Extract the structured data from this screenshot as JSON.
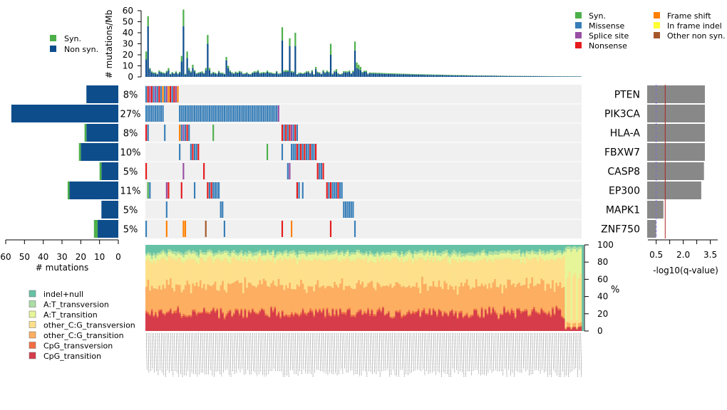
{
  "colors": {
    "syn": "#4daf4a",
    "missense": "#377eb8",
    "splice": "#984ea3",
    "nonsense": "#e41a1c",
    "frameshift": "#ff7f00",
    "inframe": "#ffff33",
    "othernonsyn": "#a65628",
    "nonsyn": "#0e4d8c",
    "grid_bg": "#f0f0f0",
    "qbar": "#888888",
    "qline": "#b22222",
    "qdash": "#7b68ee",
    "spectrum": [
      "#d63c4a",
      "#f46d43",
      "#fdae61",
      "#fee08b",
      "#e6f598",
      "#abdda4",
      "#66c2a5"
    ]
  },
  "chart_data": [
    {
      "id": "tmb",
      "type": "bar",
      "ylabel": "# mutations/Mb",
      "ylim": [
        0,
        60
      ],
      "yticks": [
        0,
        10,
        20,
        30,
        40,
        50,
        60
      ],
      "n_samples": 234,
      "peaks": [
        {
          "i": 0,
          "non": 16,
          "syn": 7
        },
        {
          "i": 1,
          "non": 46,
          "syn": 9
        },
        {
          "i": 2,
          "non": 7,
          "syn": 1
        },
        {
          "i": 3,
          "non": 4,
          "syn": 1
        },
        {
          "i": 5,
          "non": 3,
          "syn": 1
        },
        {
          "i": 12,
          "non": 6,
          "syn": 2
        },
        {
          "i": 19,
          "non": 14,
          "syn": 5
        },
        {
          "i": 20,
          "non": 46,
          "syn": 15
        },
        {
          "i": 22,
          "non": 17,
          "syn": 6
        },
        {
          "i": 23,
          "non": 6,
          "syn": 2
        },
        {
          "i": 24,
          "non": 4,
          "syn": 1
        },
        {
          "i": 25,
          "non": 8,
          "syn": 3
        },
        {
          "i": 32,
          "non": 6,
          "syn": 2
        },
        {
          "i": 33,
          "non": 30,
          "syn": 8
        },
        {
          "i": 34,
          "non": 6,
          "syn": 2
        },
        {
          "i": 43,
          "non": 15,
          "syn": 3
        },
        {
          "i": 44,
          "non": 8,
          "syn": 2
        },
        {
          "i": 73,
          "non": 33,
          "syn": 12
        },
        {
          "i": 77,
          "non": 28,
          "syn": 7
        },
        {
          "i": 80,
          "non": 28,
          "syn": 12
        },
        {
          "i": 91,
          "non": 7,
          "syn": 2
        },
        {
          "i": 99,
          "non": 20,
          "syn": 10
        },
        {
          "i": 102,
          "non": 5,
          "syn": 2
        },
        {
          "i": 112,
          "non": 24,
          "syn": 8
        },
        {
          "i": 113,
          "non": 8,
          "syn": 5
        },
        {
          "i": 114,
          "non": 7,
          "syn": 4
        },
        {
          "i": 115,
          "non": 6,
          "syn": 3
        }
      ],
      "legend": [
        "Syn.",
        "Non syn."
      ]
    },
    {
      "id": "oncoplot",
      "type": "heatmap",
      "genes": [
        "PTEN",
        "PIK3CA",
        "HLA-A",
        "FBXW7",
        "CASP8",
        "EP300",
        "MAPK1",
        "ZNF750"
      ],
      "percent": [
        "8%",
        "27%",
        "8%",
        "10%",
        "5%",
        "11%",
        "5%",
        "5%"
      ],
      "left_bars": [
        {
          "syn": 0,
          "non": 17
        },
        {
          "syn": 0,
          "non": 57
        },
        {
          "syn": 1,
          "non": 17
        },
        {
          "syn": 1,
          "non": 20
        },
        {
          "syn": 1,
          "non": 9
        },
        {
          "syn": 1,
          "non": 26
        },
        {
          "syn": 0,
          "non": 9
        },
        {
          "syn": 2,
          "non": 11
        }
      ],
      "left_axis": {
        "label": "# mutations",
        "ticks": [
          60,
          50,
          40,
          30,
          20,
          10,
          0
        ],
        "max": 60
      },
      "cells": [
        [
          [
            0,
            "ms"
          ],
          [
            1,
            "nn"
          ],
          [
            2,
            "sp"
          ],
          [
            3,
            "nn"
          ],
          [
            4,
            "ms"
          ],
          [
            5,
            "sp"
          ],
          [
            6,
            "ms"
          ],
          [
            7,
            "nn"
          ],
          [
            8,
            "ms"
          ],
          [
            9,
            "fs"
          ],
          [
            10,
            "ms"
          ],
          [
            11,
            "sp"
          ],
          [
            12,
            "fs"
          ],
          [
            13,
            "nn"
          ],
          [
            14,
            "ms"
          ],
          [
            15,
            "nn"
          ],
          [
            16,
            "sp"
          ],
          [
            17,
            "fs"
          ]
        ],
        [
          [
            "r",
            0,
            9,
            "ms"
          ],
          [
            "r",
            18,
            70,
            "ms"
          ],
          [
            71,
            "sp"
          ]
        ],
        [
          [
            0,
            "nn"
          ],
          [
            1,
            "ms"
          ],
          [
            10,
            "ms"
          ],
          [
            18,
            "fs"
          ],
          [
            19,
            "ms"
          ],
          [
            20,
            "sp"
          ],
          [
            21,
            "ms"
          ],
          [
            22,
            "nn"
          ],
          [
            23,
            "ms"
          ],
          [
            36,
            "sy"
          ],
          [
            73,
            "nn"
          ],
          [
            74,
            "ms"
          ],
          [
            75,
            "nn"
          ],
          [
            76,
            "ms"
          ],
          [
            77,
            "nn"
          ],
          [
            78,
            "sp"
          ],
          [
            79,
            "ms"
          ],
          [
            80,
            "nn"
          ],
          [
            81,
            "ms"
          ]
        ],
        [
          [
            18,
            "ms"
          ],
          [
            24,
            "ms"
          ],
          [
            25,
            "nn"
          ],
          [
            26,
            "ms"
          ],
          [
            27,
            "ms"
          ],
          [
            28,
            "nn"
          ],
          [
            65,
            "sy"
          ],
          [
            73,
            "ms"
          ],
          [
            78,
            "ms"
          ],
          [
            79,
            "ms"
          ],
          [
            80,
            "ms"
          ],
          [
            81,
            "nn"
          ],
          [
            82,
            "ms"
          ],
          [
            83,
            "nn"
          ],
          [
            84,
            "ms"
          ],
          [
            85,
            "nn"
          ],
          [
            86,
            "ms"
          ],
          [
            87,
            "ms"
          ],
          [
            88,
            "nn"
          ],
          [
            89,
            "ms"
          ],
          [
            90,
            "ms"
          ],
          [
            91,
            "nn"
          ]
        ],
        [
          [
            0,
            "nn"
          ],
          [
            20,
            "sp"
          ],
          [
            31,
            "nn"
          ],
          [
            76,
            "ms"
          ],
          [
            77,
            "sp"
          ],
          [
            92,
            "nn"
          ],
          [
            93,
            "ms"
          ],
          [
            94,
            "ms"
          ],
          [
            95,
            "nn"
          ]
        ],
        [
          [
            1,
            "sy"
          ],
          [
            2,
            "ms"
          ],
          [
            11,
            "sp"
          ],
          [
            12,
            "nn"
          ],
          [
            19,
            "nn"
          ],
          [
            26,
            "ms"
          ],
          [
            33,
            "nn"
          ],
          [
            34,
            "ms"
          ],
          [
            35,
            "nn"
          ],
          [
            36,
            "ms"
          ],
          [
            37,
            "ms"
          ],
          [
            38,
            "ms"
          ],
          [
            39,
            "ms"
          ],
          [
            81,
            "nn"
          ],
          [
            82,
            "ms"
          ],
          [
            84,
            "ms"
          ],
          [
            97,
            "nn"
          ],
          [
            98,
            "ms"
          ],
          [
            99,
            "nn"
          ],
          [
            100,
            "ms"
          ],
          [
            101,
            "ms"
          ],
          [
            102,
            "ms"
          ],
          [
            103,
            "nn"
          ],
          [
            104,
            "ms"
          ],
          [
            105,
            "ms"
          ]
        ],
        [
          [
            11,
            "ms"
          ],
          [
            40,
            "ms"
          ],
          [
            41,
            "ms"
          ],
          [
            106,
            "ms"
          ],
          [
            107,
            "ms"
          ],
          [
            108,
            "ms"
          ],
          [
            109,
            "ms"
          ],
          [
            110,
            "ms"
          ],
          [
            111,
            "ms"
          ]
        ],
        [
          [
            0,
            "ms"
          ],
          [
            11,
            "fs"
          ],
          [
            20,
            "fs"
          ],
          [
            21,
            "fs"
          ],
          [
            32,
            "ot"
          ],
          [
            42,
            "ms"
          ],
          [
            73,
            "nn"
          ],
          [
            78,
            "fs"
          ],
          [
            99,
            "nn"
          ],
          [
            112,
            "ms"
          ]
        ]
      ]
    },
    {
      "id": "qvalues",
      "type": "bar",
      "xlabel": "-log10(q-value)",
      "xticks": [
        0.5,
        2.0,
        3.5
      ],
      "xtick_labels": [
        "0.5",
        "2.0",
        "3.5"
      ],
      "xlim": [
        0,
        3.9
      ],
      "values": [
        3.2,
        3.2,
        3.2,
        3.2,
        3.15,
        3.0,
        0.9,
        0.5
      ],
      "threshold": 1.0,
      "dashed": 0.5
    },
    {
      "id": "spectrum",
      "type": "bar",
      "stacked": true,
      "ylabel": "%",
      "yticks": [
        0,
        20,
        40,
        60,
        80,
        100
      ],
      "categories": [
        "CpG_transition",
        "CpG_transversion",
        "other_C:G_transition",
        "other_C:G_transversion",
        "A:T_transition",
        "A:T_transversion",
        "indel+null"
      ],
      "mean_percent": [
        20,
        2,
        31,
        30,
        6,
        3,
        8
      ],
      "legend_order": [
        "indel+null",
        "A:T_transversion",
        "A:T_transition",
        "other_C:G_transversion",
        "other_C:G_transition",
        "CpG_transversion",
        "CpG_transition"
      ]
    }
  ],
  "mutation_legend": [
    {
      "key": "syn",
      "label": "Syn."
    },
    {
      "key": "missense",
      "label": "Missense"
    },
    {
      "key": "splice",
      "label": "Splice site"
    },
    {
      "key": "nonsense",
      "label": "Nonsense"
    },
    {
      "key": "frameshift",
      "label": "Frame shift"
    },
    {
      "key": "inframe",
      "label": "In frame indel"
    },
    {
      "key": "othernonsyn",
      "label": "Other non syn."
    }
  ]
}
